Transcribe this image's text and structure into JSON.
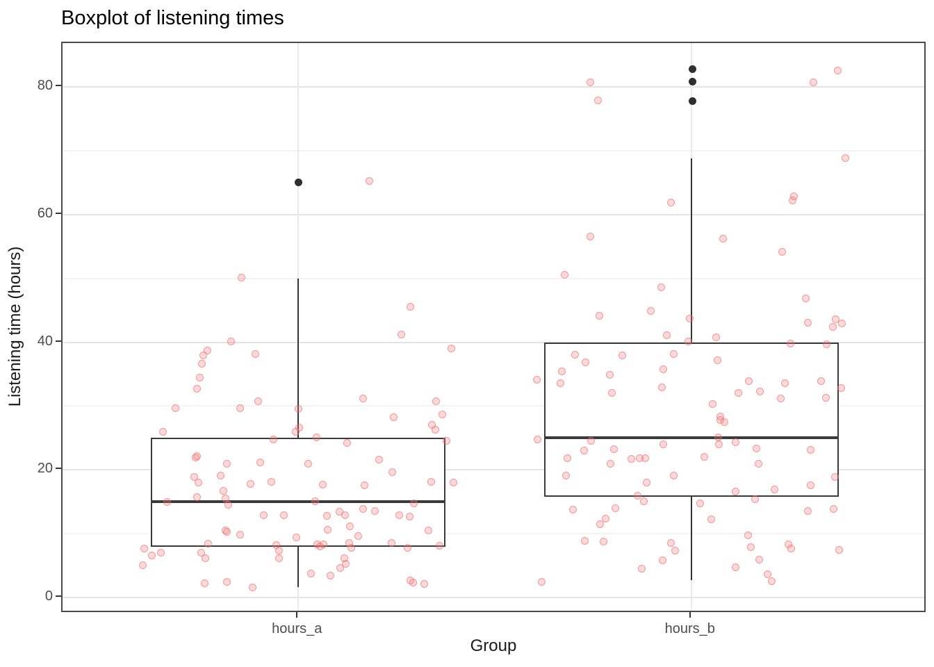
{
  "title": "Boxplot of listening times",
  "y_axis": {
    "label": "Listening time (hours)",
    "ticks": [
      0,
      20,
      40,
      60,
      80
    ],
    "minor_ticks": [
      10,
      30,
      50,
      70
    ]
  },
  "x_axis": {
    "label": "Group",
    "categories": [
      "hours_a",
      "hours_b"
    ]
  },
  "colors": {
    "point_fill": "rgba(249,130,130,0.30)",
    "point_stroke": "rgba(242,95,95,0.55)",
    "outlier": "#2E2E2E",
    "box_border": "#3A3A3A",
    "whisker": "#333333",
    "grid_major": "#E4E4E4",
    "grid_minor": "#F3F3F3",
    "vgrid": "#E9E9E9",
    "panel_border": "#4A4A4A",
    "tick_mark": "#333333",
    "tick_text": "#4D4D4D"
  },
  "chart_data": {
    "type": "boxplot+jitter",
    "title": "Boxplot of listening times",
    "xlabel": "Group",
    "ylabel": "Listening time (hours)",
    "y_range": [
      -2.5,
      86.86
    ],
    "x_range": [
      0.4,
      2.6
    ],
    "box_width": 0.75,
    "grid": true,
    "groups": [
      {
        "name": "hours_a",
        "box": {
          "lower_whisker": 1.6,
          "q1": 8,
          "median": 15,
          "q3": 25,
          "upper_whisker": 50
        },
        "outliers": [
          [
            0.0,
            65.0
          ]
        ],
        "points": [
          [
            0.181,
            65.3
          ],
          [
            -0.145,
            50.1
          ],
          [
            -0.172,
            40.1
          ],
          [
            -0.232,
            38.7
          ],
          [
            -0.241,
            37.9
          ],
          [
            -0.246,
            36.6
          ],
          [
            -0.11,
            38.1
          ],
          [
            -0.25,
            34.4
          ],
          [
            -0.258,
            32.7
          ],
          [
            -0.313,
            29.7
          ],
          [
            -0.149,
            29.7
          ],
          [
            -0.103,
            30.8
          ],
          [
            0.0,
            29.6
          ],
          [
            0.285,
            45.6
          ],
          [
            0.262,
            41.2
          ],
          [
            0.389,
            39.0
          ],
          [
            0.165,
            31.2
          ],
          [
            0.35,
            30.7
          ],
          [
            0.366,
            28.7
          ],
          [
            0.242,
            28.3
          ],
          [
            -0.345,
            26.0
          ],
          [
            -0.064,
            24.8
          ],
          [
            -0.007,
            26.0
          ],
          [
            0.002,
            26.6
          ],
          [
            0.046,
            25.1
          ],
          [
            0.124,
            24.2
          ],
          [
            0.34,
            27.0
          ],
          [
            0.349,
            26.3
          ],
          [
            0.377,
            24.6
          ],
          [
            -0.262,
            21.9
          ],
          [
            -0.258,
            22.1
          ],
          [
            -0.181,
            21.0
          ],
          [
            -0.096,
            21.2
          ],
          [
            0.025,
            21.0
          ],
          [
            0.205,
            21.6
          ],
          [
            -0.265,
            18.9
          ],
          [
            -0.255,
            18.0
          ],
          [
            -0.198,
            19.1
          ],
          [
            0.239,
            19.7
          ],
          [
            -0.122,
            17.8
          ],
          [
            -0.069,
            18.1
          ],
          [
            0.062,
            17.7
          ],
          [
            0.168,
            17.6
          ],
          [
            0.338,
            18.1
          ],
          [
            0.395,
            18.0
          ],
          [
            -0.191,
            16.7
          ],
          [
            -0.257,
            15.7
          ],
          [
            -0.186,
            15.5
          ],
          [
            -0.179,
            14.5
          ],
          [
            -0.333,
            15.0
          ],
          [
            0.042,
            15.1
          ],
          [
            0.165,
            13.9
          ],
          [
            0.195,
            13.6
          ],
          [
            0.294,
            14.8
          ],
          [
            -0.088,
            12.9
          ],
          [
            -0.037,
            12.9
          ],
          [
            0.073,
            12.8
          ],
          [
            0.104,
            13.4
          ],
          [
            0.119,
            12.9
          ],
          [
            0.257,
            12.9
          ],
          [
            0.283,
            12.7
          ],
          [
            0.131,
            11.2
          ],
          [
            -0.186,
            10.5
          ],
          [
            -0.182,
            10.3
          ],
          [
            -0.149,
            9.8
          ],
          [
            0.074,
            10.6
          ],
          [
            0.152,
            9.6
          ],
          [
            0.331,
            10.5
          ],
          [
            -0.005,
            9.4
          ],
          [
            -0.23,
            8.4
          ],
          [
            -0.057,
            8.2
          ],
          [
            -0.05,
            7.4
          ],
          [
            0.048,
            8.3
          ],
          [
            0.055,
            8.0
          ],
          [
            0.064,
            8.3
          ],
          [
            0.129,
            8.6
          ],
          [
            0.135,
            7.8
          ],
          [
            0.237,
            8.6
          ],
          [
            0.278,
            7.8
          ],
          [
            0.359,
            8.1
          ],
          [
            -0.393,
            7.7
          ],
          [
            -0.373,
            6.6
          ],
          [
            -0.35,
            7.0
          ],
          [
            -0.248,
            7.0
          ],
          [
            -0.396,
            5.1
          ],
          [
            -0.237,
            6.2
          ],
          [
            -0.05,
            6.1
          ],
          [
            0.117,
            6.1
          ],
          [
            0.12,
            5.3
          ],
          [
            0.106,
            4.6
          ],
          [
            0.032,
            3.8
          ],
          [
            0.081,
            3.4
          ],
          [
            0.285,
            2.7
          ],
          [
            0.292,
            2.3
          ],
          [
            0.32,
            2.1
          ],
          [
            -0.239,
            2.2
          ],
          [
            -0.182,
            2.5
          ],
          [
            -0.117,
            1.6
          ]
        ]
      },
      {
        "name": "hours_b",
        "box": {
          "lower_whisker": 2.7,
          "q1": 15.8,
          "median": 25,
          "q3": 40,
          "upper_whisker": 68.8
        },
        "outliers": [
          [
            0.004,
            82.8
          ],
          [
            0.004,
            80.8
          ],
          [
            0.004,
            77.8
          ]
        ],
        "points": [
          [
            -0.257,
            80.7
          ],
          [
            -0.237,
            77.9
          ],
          [
            0.31,
            80.7
          ],
          [
            0.373,
            82.6
          ],
          [
            0.393,
            68.8
          ],
          [
            -0.051,
            61.9
          ],
          [
            0.257,
            62.2
          ],
          [
            0.262,
            62.9
          ],
          [
            -0.257,
            56.6
          ],
          [
            0.081,
            56.2
          ],
          [
            0.232,
            54.2
          ],
          [
            -0.322,
            50.6
          ],
          [
            -0.076,
            48.6
          ],
          [
            0.292,
            46.9
          ],
          [
            -0.103,
            44.9
          ],
          [
            -0.234,
            44.1
          ],
          [
            -0.004,
            43.7
          ],
          [
            0.297,
            43.1
          ],
          [
            0.368,
            43.6
          ],
          [
            0.384,
            42.9
          ],
          [
            0.361,
            42.4
          ],
          [
            -0.062,
            41.1
          ],
          [
            -0.007,
            40.1
          ],
          [
            0.064,
            40.8
          ],
          [
            0.253,
            39.8
          ],
          [
            0.345,
            39.7
          ],
          [
            -0.296,
            38.0
          ],
          [
            -0.269,
            36.9
          ],
          [
            -0.175,
            37.9
          ],
          [
            -0.044,
            38.1
          ],
          [
            0.067,
            37.2
          ],
          [
            -0.071,
            35.8
          ],
          [
            -0.329,
            35.4
          ],
          [
            -0.333,
            33.6
          ],
          [
            -0.207,
            34.9
          ],
          [
            -0.393,
            34.1
          ],
          [
            -0.074,
            32.9
          ],
          [
            -0.202,
            32.1
          ],
          [
            0.147,
            33.9
          ],
          [
            0.175,
            32.3
          ],
          [
            0.12,
            32.1
          ],
          [
            0.239,
            33.6
          ],
          [
            0.227,
            31.2
          ],
          [
            0.331,
            33.9
          ],
          [
            0.342,
            31.3
          ],
          [
            0.381,
            32.8
          ],
          [
            0.055,
            30.3
          ],
          [
            0.074,
            28.4
          ],
          [
            0.074,
            27.8
          ],
          [
            0.085,
            27.5
          ],
          [
            -0.391,
            24.8
          ],
          [
            -0.255,
            24.6
          ],
          [
            0.069,
            25.1
          ],
          [
            0.071,
            24.0
          ],
          [
            0.113,
            24.3
          ],
          [
            -0.071,
            24.0
          ],
          [
            0.165,
            23.4
          ],
          [
            -0.273,
            23.0
          ],
          [
            -0.196,
            23.2
          ],
          [
            0.304,
            23.1
          ],
          [
            -0.315,
            21.8
          ],
          [
            -0.205,
            21.0
          ],
          [
            -0.152,
            21.7
          ],
          [
            -0.131,
            21.8
          ],
          [
            -0.117,
            21.8
          ],
          [
            0.034,
            22.0
          ],
          [
            0.172,
            21.0
          ],
          [
            -0.319,
            19.1
          ],
          [
            -0.044,
            19.1
          ],
          [
            -0.113,
            18.0
          ],
          [
            0.304,
            17.6
          ],
          [
            0.365,
            18.9
          ],
          [
            0.113,
            16.6
          ],
          [
            0.211,
            16.9
          ],
          [
            -0.136,
            16.0
          ],
          [
            -0.12,
            15.1
          ],
          [
            0.163,
            15.4
          ],
          [
            0.023,
            14.7
          ],
          [
            -0.301,
            13.8
          ],
          [
            -0.193,
            14.0
          ],
          [
            0.297,
            13.6
          ],
          [
            0.363,
            13.9
          ],
          [
            0.05,
            12.3
          ],
          [
            -0.218,
            12.4
          ],
          [
            -0.232,
            11.5
          ],
          [
            0.145,
            9.7
          ],
          [
            -0.271,
            8.9
          ],
          [
            -0.223,
            8.8
          ],
          [
            0.152,
            7.9
          ],
          [
            -0.051,
            8.6
          ],
          [
            -0.041,
            7.3
          ],
          [
            0.248,
            8.3
          ],
          [
            0.255,
            7.7
          ],
          [
            0.377,
            7.5
          ],
          [
            0.173,
            5.9
          ],
          [
            -0.073,
            5.8
          ],
          [
            0.113,
            4.7
          ],
          [
            -0.126,
            4.5
          ],
          [
            0.195,
            3.7
          ],
          [
            0.204,
            2.6
          ],
          [
            -0.381,
            2.4
          ]
        ]
      }
    ]
  }
}
